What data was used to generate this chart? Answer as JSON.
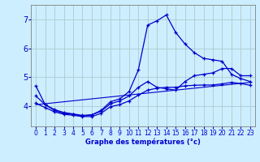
{
  "xlabel": "Graphe des températures (°c)",
  "background_color": "#cceeff",
  "grid_color": "#aacccc",
  "line_color": "#0000cc",
  "xlim": [
    -0.5,
    23.5
  ],
  "ylim": [
    3.3,
    7.5
  ],
  "yticks": [
    4,
    5,
    6,
    7
  ],
  "xticks": [
    0,
    1,
    2,
    3,
    4,
    5,
    6,
    7,
    8,
    9,
    10,
    11,
    12,
    13,
    14,
    15,
    16,
    17,
    18,
    19,
    20,
    21,
    22,
    23
  ],
  "series": [
    {
      "x": [
        0,
        1,
        2,
        3,
        4,
        5,
        6,
        7,
        8,
        9,
        10,
        11,
        12,
        13,
        14,
        15,
        16,
        17,
        18,
        19,
        20,
        21,
        22,
        23
      ],
      "y": [
        4.7,
        4.05,
        3.85,
        3.75,
        3.72,
        3.65,
        3.7,
        3.85,
        4.15,
        4.25,
        4.5,
        5.25,
        6.8,
        6.95,
        7.15,
        6.55,
        6.15,
        5.85,
        5.65,
        5.6,
        5.55,
        5.1,
        4.95,
        4.85
      ],
      "marker": true
    },
    {
      "x": [
        0,
        1,
        2,
        3,
        4,
        5,
        6,
        7,
        8,
        9,
        10,
        11,
        12,
        13,
        14,
        15,
        16,
        17,
        18,
        19,
        20,
        21,
        22,
        23
      ],
      "y": [
        4.35,
        4.05,
        3.88,
        3.78,
        3.73,
        3.68,
        3.7,
        3.82,
        4.08,
        4.18,
        4.35,
        4.65,
        4.85,
        4.65,
        4.6,
        4.55,
        4.85,
        5.05,
        5.1,
        5.15,
        5.3,
        5.3,
        5.05,
        5.05
      ],
      "marker": true
    },
    {
      "x": [
        0,
        1,
        2,
        3,
        4,
        5,
        6,
        7,
        8,
        9,
        10,
        11,
        12,
        13,
        14,
        15,
        16,
        17,
        18,
        19,
        20,
        21,
        22,
        23
      ],
      "y": [
        4.1,
        3.95,
        3.8,
        3.72,
        3.68,
        3.64,
        3.64,
        3.75,
        3.98,
        4.05,
        4.18,
        4.38,
        4.55,
        4.62,
        4.65,
        4.65,
        4.7,
        4.72,
        4.73,
        4.73,
        4.77,
        4.82,
        4.78,
        4.72
      ],
      "marker": true
    },
    {
      "x": [
        0,
        23
      ],
      "y": [
        4.05,
        4.82
      ],
      "marker": false
    }
  ]
}
